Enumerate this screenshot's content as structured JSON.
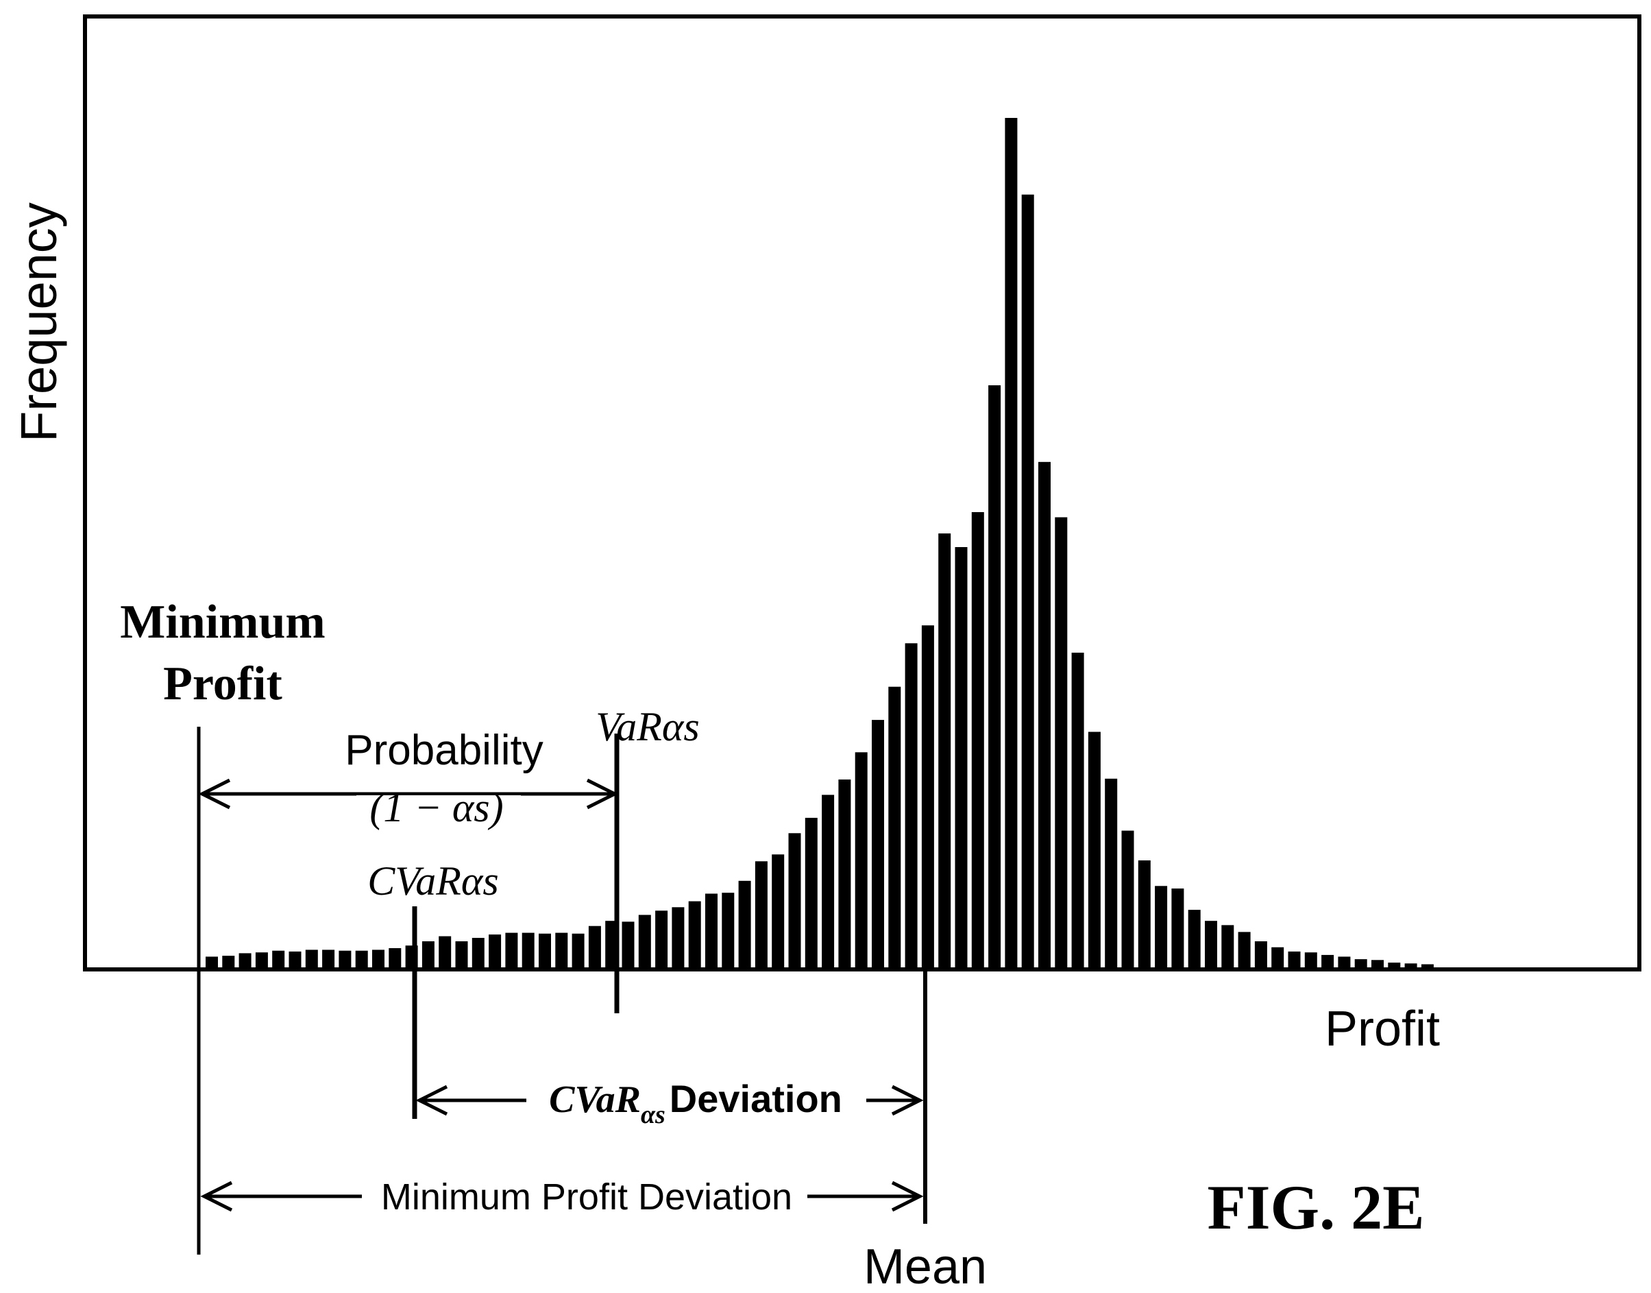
{
  "figure_label": "FIG. 2E",
  "colors": {
    "ink": "#000000",
    "paper": "#ffffff"
  },
  "chart_data": {
    "type": "bar",
    "title": "",
    "xlabel": "Profit",
    "ylabel": "Frequency",
    "grid": false,
    "legend": "none",
    "x_ticks_labeled": false,
    "y_ticks_labeled": false,
    "ylim": [
      0,
      100
    ],
    "values": [
      1.5,
      1.6,
      1.9,
      2.0,
      2.2,
      2.1,
      2.3,
      2.3,
      2.2,
      2.2,
      2.3,
      2.5,
      2.8,
      3.3,
      3.9,
      3.3,
      3.7,
      4.1,
      4.3,
      4.3,
      4.2,
      4.3,
      4.2,
      5.1,
      5.7,
      5.6,
      6.4,
      6.9,
      7.3,
      8.0,
      8.9,
      9.0,
      10.4,
      12.7,
      13.5,
      16.0,
      17.8,
      20.5,
      22.3,
      25.5,
      29.3,
      33.2,
      38.3,
      40.4,
      51.2,
      49.6,
      53.7,
      68.6,
      100,
      91.0,
      59.6,
      53.1,
      37.2,
      27.9,
      22.4,
      16.3,
      12.8,
      9.8,
      9.5,
      7.0,
      5.7,
      5.2,
      4.4,
      3.3,
      2.6,
      2.1,
      2.0,
      1.7,
      1.5,
      1.2,
      1.1,
      0.8,
      0.7,
      0.6
    ],
    "annotations": {
      "minimum_profit_label": [
        "Minimum",
        "Profit"
      ],
      "probability_label": "Probability",
      "probability_expr": "(1 − αs)",
      "var_label": "VaRαs",
      "cvar_label": "CVaRαs",
      "cvar_deviation_label": "CVaRαs Deviation",
      "cvar_deviation_prefix": "CVaR",
      "cvar_deviation_subscript": "αs",
      "cvar_deviation_suffix": "Deviation",
      "minimum_profit_deviation_label": "Minimum Profit Deviation",
      "mean_label": "Mean"
    }
  }
}
